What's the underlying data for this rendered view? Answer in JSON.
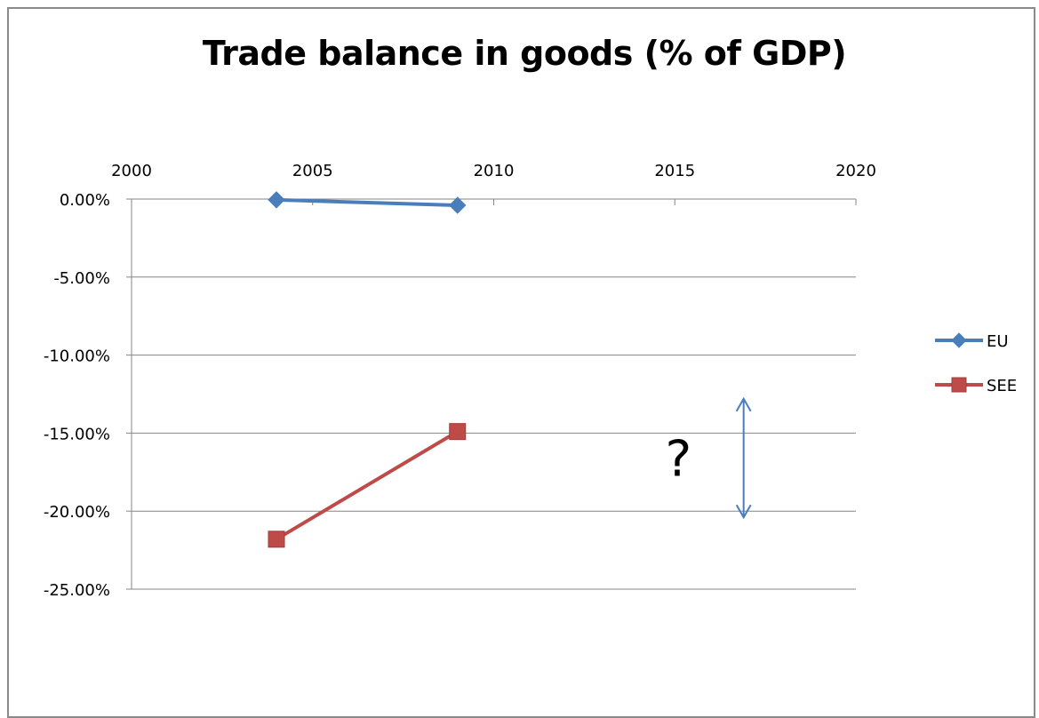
{
  "chart_data": {
    "type": "line",
    "title": "Trade balance in goods (% of GDP)",
    "xlabel": "",
    "ylabel": "",
    "x_axis_position": "top",
    "xlim": [
      2000,
      2020
    ],
    "xticks": [
      2000,
      2005,
      2010,
      2015,
      2020
    ],
    "xtick_labels": [
      "2000",
      "2005",
      "2010",
      "2015",
      "2020"
    ],
    "ylim": [
      -0.25,
      0
    ],
    "yticks": [
      0,
      -0.05,
      -0.1,
      -0.15,
      -0.2,
      -0.25
    ],
    "ytick_labels": [
      "0.00%",
      "-5.00%",
      "-10.00%",
      "-15.00%",
      "-20.00%",
      "-25.00%"
    ],
    "grid": "horizontal",
    "legend_position": "right",
    "series": [
      {
        "name": "EU",
        "color": "#4a7ebb",
        "marker": "diamond",
        "x": [
          2004,
          2009
        ],
        "y": [
          -0.0005,
          -0.004
        ]
      },
      {
        "name": "SEE",
        "color": "#be4b48",
        "marker": "square",
        "x": [
          2004,
          2009
        ],
        "y": [
          -0.218,
          -0.149
        ]
      }
    ],
    "annotations": [
      {
        "text": "?",
        "x": 2015.1,
        "y": -0.165
      },
      {
        "type": "double-arrow",
        "color": "#4a7ebb",
        "x": 2016.9,
        "y_from": -0.128,
        "y_to": -0.204
      }
    ]
  }
}
